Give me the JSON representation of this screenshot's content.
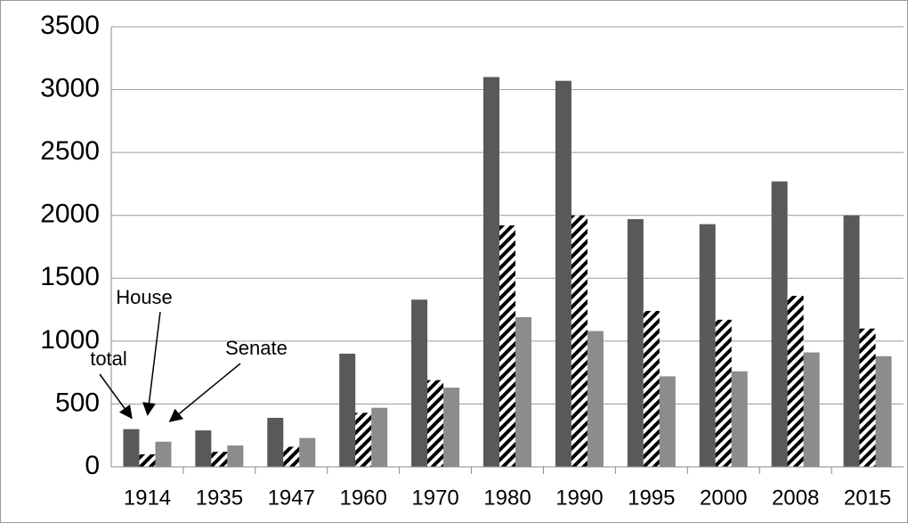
{
  "chart_data": {
    "type": "bar",
    "categories": [
      "1914",
      "1935",
      "1947",
      "1960",
      "1970",
      "1980",
      "1990",
      "1995",
      "2000",
      "2008",
      "2015"
    ],
    "series": [
      {
        "name": "total",
        "color": "#595959",
        "values": [
          300,
          290,
          390,
          900,
          1330,
          3100,
          3070,
          1970,
          1930,
          2270,
          2000
        ]
      },
      {
        "name": "House",
        "color": "#000000",
        "hatch": true,
        "values": [
          100,
          120,
          160,
          430,
          690,
          1920,
          2000,
          1240,
          1170,
          1360,
          1100
        ]
      },
      {
        "name": "Senate",
        "color": "#8c8c8c",
        "values": [
          200,
          170,
          230,
          470,
          630,
          1190,
          1080,
          720,
          760,
          910,
          880
        ]
      }
    ],
    "ylim": [
      0,
      3500
    ],
    "yticks": [
      0,
      500,
      1000,
      1500,
      2000,
      2500,
      3000,
      3500
    ],
    "grid": true
  }
}
